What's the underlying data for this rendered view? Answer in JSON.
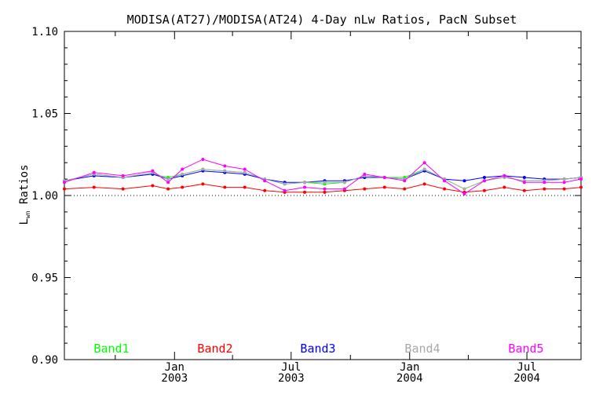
{
  "chart_data": {
    "type": "line",
    "title": "MODISA(AT27)/MODISA(AT24) 4-Day nLw Ratios, PacN Subset",
    "ylabel_main": "L",
    "ylabel_sub": "wn",
    "ylabel_rest": " Ratios",
    "ylim": [
      0.9,
      1.1
    ],
    "yticks": [
      "0.90",
      "0.95",
      "1.00",
      "1.05",
      "1.10"
    ],
    "xlim": [
      "2002-07-14",
      "2004-09-23"
    ],
    "xticks": [
      {
        "date": "2003-01-01",
        "month": "Jan",
        "year": "2003"
      },
      {
        "date": "2003-07-01",
        "month": "Jul",
        "year": "2003"
      },
      {
        "date": "2004-01-01",
        "month": "Jan",
        "year": "2004"
      },
      {
        "date": "2004-07-01",
        "month": "Jul",
        "year": "2004"
      }
    ],
    "reference_line": 1.0,
    "x": [
      "2002-07-14",
      "2002-08-29",
      "2002-10-13",
      "2002-11-28",
      "2002-12-22",
      "2003-01-13",
      "2003-02-14",
      "2003-03-20",
      "2003-04-20",
      "2003-05-21",
      "2003-06-21",
      "2003-07-22",
      "2003-08-22",
      "2003-09-22",
      "2003-10-23",
      "2003-11-23",
      "2003-12-24",
      "2004-01-24",
      "2004-02-24",
      "2004-03-26",
      "2004-04-26",
      "2004-05-27",
      "2004-06-27",
      "2004-07-28",
      "2004-08-28",
      "2004-09-23"
    ],
    "series": [
      {
        "name": "Band1",
        "color": "#00ff00",
        "values": [
          1.009,
          1.013,
          1.011,
          1.013,
          1.011,
          1.013,
          1.016,
          1.015,
          1.014,
          1.01,
          1.007,
          1.008,
          1.007,
          1.008,
          1.012,
          1.011,
          1.011,
          1.016,
          1.01,
          1.004,
          1.009,
          1.011,
          1.009,
          1.009,
          1.01,
          1.011
        ]
      },
      {
        "name": "Band2",
        "color": "#ff0000",
        "values": [
          1.004,
          1.005,
          1.004,
          1.006,
          1.004,
          1.005,
          1.007,
          1.005,
          1.005,
          1.003,
          1.002,
          1.002,
          1.002,
          1.003,
          1.004,
          1.005,
          1.004,
          1.007,
          1.004,
          1.002,
          1.003,
          1.005,
          1.003,
          1.004,
          1.004,
          1.005
        ]
      },
      {
        "name": "Band3",
        "color": "#0000ff",
        "values": [
          1.009,
          1.012,
          1.011,
          1.013,
          1.01,
          1.012,
          1.015,
          1.014,
          1.013,
          1.01,
          1.008,
          1.008,
          1.009,
          1.009,
          1.011,
          1.011,
          1.01,
          1.015,
          1.01,
          1.009,
          1.011,
          1.012,
          1.011,
          1.01,
          1.01,
          1.011
        ]
      },
      {
        "name": "Band4",
        "color": "#a9a9a9",
        "values": [
          1.009,
          1.013,
          1.011,
          1.014,
          1.01,
          1.013,
          1.016,
          1.015,
          1.014,
          1.01,
          1.007,
          1.008,
          1.008,
          1.008,
          1.012,
          1.011,
          1.01,
          1.016,
          1.01,
          1.004,
          1.009,
          1.011,
          1.009,
          1.009,
          1.01,
          1.011
        ]
      },
      {
        "name": "Band5",
        "color": "#ff00ff",
        "values": [
          1.008,
          1.014,
          1.012,
          1.015,
          1.008,
          1.016,
          1.022,
          1.018,
          1.016,
          1.009,
          1.003,
          1.005,
          1.004,
          1.004,
          1.013,
          1.011,
          1.009,
          1.02,
          1.009,
          1.001,
          1.009,
          1.012,
          1.008,
          1.008,
          1.008,
          1.01
        ]
      }
    ],
    "legend_placement": "bottom, horizontal inside plot",
    "grid": false
  }
}
